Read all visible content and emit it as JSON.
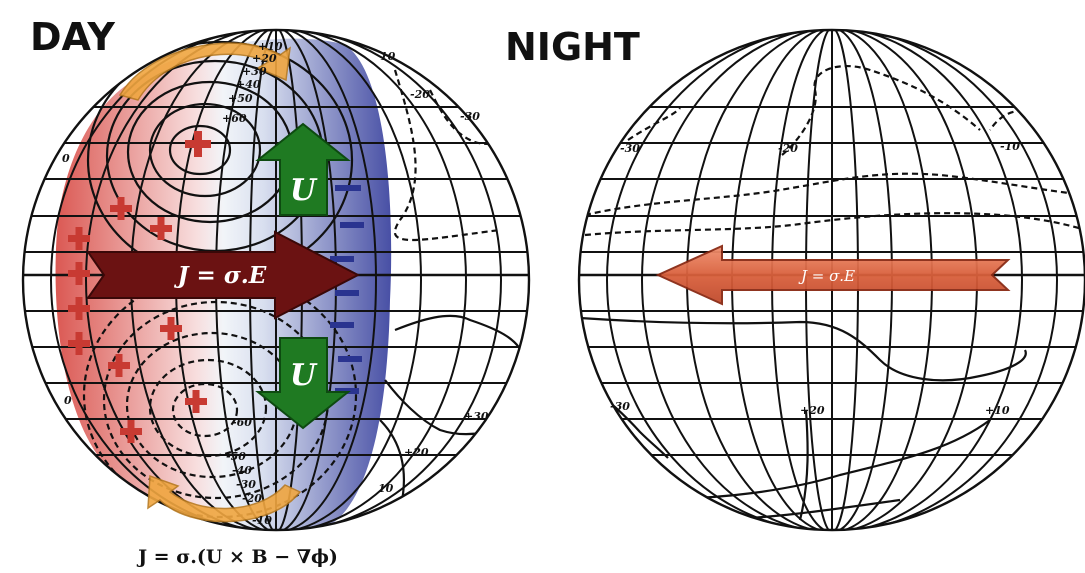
{
  "headings": {
    "day": "DAY",
    "night": "NIGHT"
  },
  "arrows": {
    "day_current": "J = σ.E",
    "night_current": "J = σ.E",
    "wind_up": "U",
    "wind_down": "U"
  },
  "equation": "J = σ.(U × B − ∇ϕ)",
  "day_labels": [
    "+10",
    "+20",
    "+30",
    "+40",
    "+50",
    "+60",
    "-60",
    "-50",
    "-40",
    "-30",
    "-20",
    "-10",
    "0",
    "0",
    "10",
    "-20",
    "-30",
    "+30",
    "+20",
    "10"
  ],
  "night_labels": [
    "-30",
    "-20",
    "-10",
    "-30",
    "+20",
    "+10"
  ],
  "colors": {
    "positive_region": "#d9504a",
    "negative_region": "#3e46a0",
    "current_arrow_day": "#6b1212",
    "current_arrow_night": "#d9603c",
    "wind_arrow": "#1f7a22",
    "vortex_arrow": "#f0a640"
  }
}
